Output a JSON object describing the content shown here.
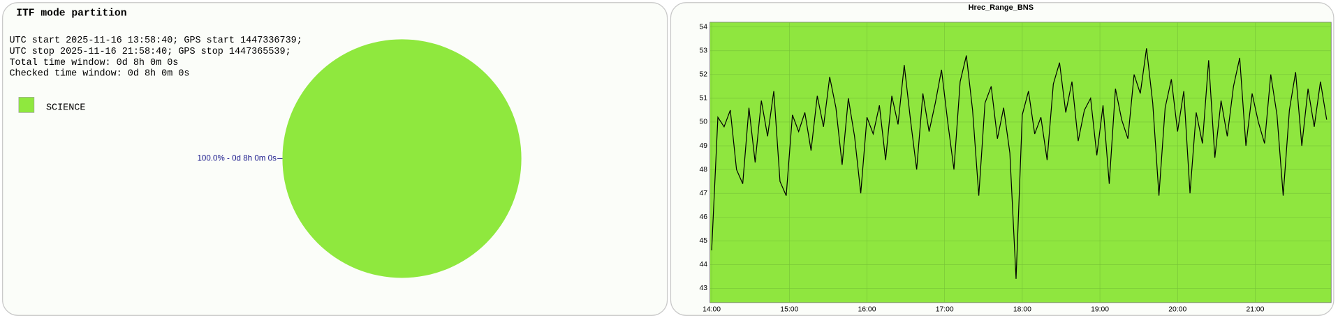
{
  "chart_data": [
    {
      "type": "pie",
      "title": "ITF mode partition",
      "info": [
        "UTC start 2025-11-16 13:58:40; GPS start 1447336739;",
        "UTC stop 2025-11-16 21:58:40; GPS stop 1447365539;",
        "Total time window: 0d 8h 0m 0s",
        "Checked time window: 0d 8h 0m 0s"
      ],
      "categories": [
        "SCIENCE"
      ],
      "values": [
        100
      ],
      "value_labels": [
        "100.0% - 0d 8h 0m 0s"
      ],
      "colors": [
        "#8fe83e"
      ],
      "legend": "top-left"
    },
    {
      "type": "line",
      "title": "Hrec_Range_BNS",
      "x": [
        14.0,
        14.08,
        14.16,
        14.24,
        14.32,
        14.4,
        14.48,
        14.56,
        14.64,
        14.72,
        14.8,
        14.88,
        14.96,
        15.04,
        15.12,
        15.2,
        15.28,
        15.36,
        15.44,
        15.52,
        15.6,
        15.68,
        15.76,
        15.84,
        15.92,
        16.0,
        16.08,
        16.16,
        16.24,
        16.32,
        16.4,
        16.48,
        16.56,
        16.64,
        16.72,
        16.8,
        16.88,
        16.96,
        17.04,
        17.12,
        17.2,
        17.28,
        17.36,
        17.44,
        17.52,
        17.6,
        17.68,
        17.76,
        17.84,
        17.92,
        18.0,
        18.08,
        18.16,
        18.24,
        18.32,
        18.4,
        18.48,
        18.56,
        18.64,
        18.72,
        18.8,
        18.88,
        18.96,
        19.04,
        19.12,
        19.2,
        19.28,
        19.36,
        19.44,
        19.52,
        19.6,
        19.68,
        19.76,
        19.84,
        19.92,
        20.0,
        20.08,
        20.16,
        20.24,
        20.32,
        20.4,
        20.48,
        20.56,
        20.64,
        20.72,
        20.8,
        20.88,
        20.96,
        21.04,
        21.12,
        21.2,
        21.28,
        21.36,
        21.44,
        21.52,
        21.6,
        21.68,
        21.76,
        21.84,
        21.92
      ],
      "series": [
        {
          "name": "Hrec_Range_BNS",
          "color": "#000000",
          "values": [
            44.6,
            50.2,
            49.8,
            50.5,
            48.0,
            47.4,
            50.6,
            48.3,
            50.9,
            49.4,
            51.3,
            47.5,
            46.9,
            50.3,
            49.6,
            50.4,
            48.8,
            51.1,
            49.8,
            51.9,
            50.6,
            48.2,
            51.0,
            49.4,
            47.0,
            50.2,
            49.5,
            50.7,
            48.4,
            51.1,
            49.9,
            52.4,
            50.1,
            48.0,
            51.2,
            49.6,
            50.8,
            52.2,
            50.0,
            48.0,
            51.7,
            52.8,
            50.5,
            46.9,
            50.8,
            51.5,
            49.3,
            50.6,
            48.7,
            43.4,
            50.3,
            51.3,
            49.5,
            50.2,
            48.4,
            51.6,
            52.5,
            50.4,
            51.7,
            49.2,
            50.5,
            51.0,
            48.6,
            50.7,
            47.4,
            51.4,
            50.1,
            49.3,
            52.0,
            51.2,
            53.1,
            50.8,
            46.9,
            50.6,
            51.8,
            49.6,
            51.3,
            47.0,
            50.4,
            49.1,
            52.6,
            48.5,
            50.9,
            49.4,
            51.5,
            52.7,
            49.0,
            51.2,
            50.0,
            49.1,
            52.0,
            50.3,
            46.9,
            50.5,
            52.1,
            49.0,
            51.4,
            49.8,
            51.7,
            50.1
          ]
        }
      ],
      "background": "#8fe63f",
      "grid": true,
      "xlim": [
        13.978,
        21.978
      ],
      "xticks": [
        {
          "value": 14,
          "label": "14:00"
        },
        {
          "value": 15,
          "label": "15:00"
        },
        {
          "value": 16,
          "label": "16:00"
        },
        {
          "value": 17,
          "label": "17:00"
        },
        {
          "value": 18,
          "label": "18:00"
        },
        {
          "value": 19,
          "label": "19:00"
        },
        {
          "value": 20,
          "label": "20:00"
        },
        {
          "value": 21,
          "label": "21:00"
        }
      ],
      "ylim": [
        42.4,
        54.2
      ],
      "yticks": [
        43,
        44,
        45,
        46,
        47,
        48,
        49,
        50,
        51,
        52,
        53,
        54
      ]
    }
  ]
}
